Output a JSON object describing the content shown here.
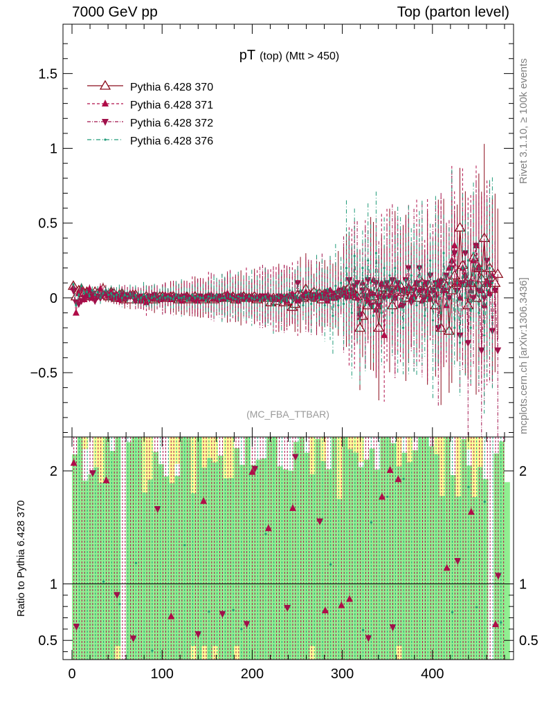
{
  "header": {
    "left": "7000 GeV pp",
    "right": "Top (parton level)"
  },
  "side_labels": {
    "rivet": "Rivet 3.1.10, ≥ 100k events",
    "mcplots": "mcplots.cern.ch [arXiv:1306.3436]"
  },
  "colors": {
    "pythia_370": "#8b0a1a",
    "pythia_371": "#b00c48",
    "pythia_372": "#a0104a",
    "pythia_376": "#1f9a78",
    "band_green": "#90ee90",
    "band_yellow": "#ffff99"
  },
  "chart_data": [
    {
      "type": "scatter",
      "title": "pT (top) (Mtt > 450)",
      "title_parts": {
        "main": "pT",
        "sub": "(top) (Mtt > 450)"
      },
      "analysis_label": "(MC_FBA_TTBAR)",
      "xlim": [
        -10,
        490
      ],
      "ylim": [
        -0.93,
        1.83
      ],
      "yticks": [
        -0.5,
        0,
        0.5,
        1,
        1.5
      ],
      "ytick_labels": [
        "−0.5",
        "0",
        "0.5",
        "1",
        "1.5"
      ],
      "legend": [
        "Pythia 6.428 370",
        "Pythia 6.428 371",
        "Pythia 6.428 372",
        "Pythia 6.428 376"
      ],
      "legend_placement": "top-left",
      "x": [
        1.5,
        4.5,
        7.5,
        10.5,
        13.5,
        16.5,
        19.5,
        22.5,
        25.5,
        28.5,
        31.5,
        34.5,
        37.5,
        40.5,
        43.5,
        46.5,
        49.5,
        52.5,
        55.5,
        58.5,
        61.5,
        64.5,
        67.5,
        70.5,
        73.5,
        76.5,
        79.5,
        82.5,
        85.5,
        88.5,
        91.5,
        94.5,
        97.5,
        100.5,
        103.5,
        106.5,
        109.5,
        112.5,
        115.5,
        118.5,
        121.5,
        124.5,
        127.5,
        130.5,
        133.5,
        136.5,
        139.5,
        142.5,
        145.5,
        148.5,
        151.5,
        154.5,
        157.5,
        160.5,
        163.5,
        166.5,
        169.5,
        172.5,
        175.5,
        178.5,
        181.5,
        184.5,
        187.5,
        190.5,
        193.5,
        196.5,
        199.5,
        202.5,
        205.5,
        208.5,
        211.5,
        214.5,
        217.5,
        220.5,
        223.5,
        226.5,
        229.5,
        232.5,
        235.5,
        238.5,
        241.5,
        244.5,
        247.5,
        250.5,
        253.5,
        256.5,
        259.5,
        262.5,
        265.5,
        268.5,
        271.5,
        274.5,
        277.5,
        280.5,
        283.5,
        286.5,
        289.5,
        292.5,
        295.5,
        298.5,
        301.5,
        304.5,
        307.5,
        310.5,
        313.5,
        316.5,
        319.5,
        322.5,
        325.5,
        328.5,
        331.5,
        334.5,
        337.5,
        340.5,
        343.5,
        346.5,
        349.5,
        352.5,
        355.5,
        358.5,
        361.5,
        364.5,
        367.5,
        370.5,
        373.5,
        376.5,
        379.5,
        382.5,
        385.5,
        388.5,
        391.5,
        394.5,
        397.5,
        400.5,
        403.5,
        406.5,
        409.5,
        412.5,
        415.5,
        418.5,
        421.5,
        424.5,
        427.5,
        430.5,
        433.5,
        436.5,
        439.5,
        442.5,
        445.5,
        448.5,
        451.5,
        454.5,
        457.5,
        460.5,
        463.5,
        466.5,
        469.5,
        472.5,
        475.5,
        478.5
      ],
      "series": [
        {
          "name": "Pythia 6.428 370",
          "marker": "open-triangle-up",
          "values": [
            0.08,
            0.01,
            0.05,
            0.06,
            0.03,
            0.04,
            0.01,
            0.02,
            0.04,
            0.03,
            0.02,
            0.06,
            0.02,
            0.01,
            0.04,
            0.03,
            0.0,
            0.02,
            0.03,
            -0.01,
            0.0,
            -0.01,
            0.02,
            0.02,
            0.0,
            -0.01,
            0.0,
            0.01,
            0.0,
            -0.01,
            -0.01,
            0.0,
            0.01,
            0.01,
            0.0,
            0.0,
            0.01,
            0.01,
            0.0,
            -0.01,
            0.0,
            0.0,
            0.01,
            -0.01,
            0.0,
            0.01,
            0.0,
            0.0,
            -0.01,
            0.0,
            0.0,
            0.0,
            -0.01,
            0.0,
            0.0,
            0.0,
            0.01,
            0.0,
            0.0,
            0.01,
            -0.01,
            0.0,
            0.0,
            0.01,
            0.0,
            0.0,
            0.0,
            0.01,
            -0.01,
            0.0,
            0.0,
            0.0,
            0.0,
            -0.03,
            0.0,
            -0.02,
            0.0,
            0.0,
            -0.03,
            0.0,
            -0.02,
            -0.06,
            -0.04,
            0.02,
            0.02,
            0.0,
            0.06,
            0.01,
            0.02,
            0.04,
            0.0,
            0.03,
            -0.01,
            0.03,
            0.02,
            0.04,
            0.01,
            0.02,
            0.03,
            0.04,
            0.05,
            0.05,
            0.07,
            0.06,
            0.02,
            0.01,
            -0.2,
            -0.12,
            0.05,
            -0.05,
            0.03,
            0.01,
            -0.05,
            -0.2,
            0.07,
            0.02,
            0.03,
            0.05,
            -0.05,
            0.1,
            0.05,
            0.08,
            0.04,
            0.0,
            0.05,
            0.02,
            0.06,
            0.03,
            0.0,
            0.1,
            0.03,
            0.0,
            0.05,
            0.03,
            -0.05,
            0.1,
            -0.2,
            0.1,
            0.08,
            -0.22,
            0.05,
            0.15,
            0.1,
            0.47,
            0.22,
            0.1,
            -0.05,
            0.1,
            0.27,
            0.0,
            0.2,
            0.13,
            0.4,
            0.1,
            0.2,
            0.06,
            0.1,
            0.16
          ]
        },
        {
          "name": "Pythia 6.428 371",
          "marker": "filled-triangle-up",
          "values": [
            0.07,
            -0.1,
            0.03,
            0.06,
            -0.01,
            0.04,
            0.06,
            0.0,
            0.02,
            0.01,
            0.06,
            0.03,
            0.04,
            0.01,
            0.04,
            0.0,
            0.02,
            -0.01,
            0.03,
            0.0,
            0.02,
            0.03,
            0.01,
            0.01,
            0.0,
            -0.02,
            0.01,
            -0.03,
            0.01,
            0.0,
            0.02,
            0.0,
            -0.01,
            0.0,
            0.02,
            0.0,
            -0.01,
            0.0,
            0.01,
            0.01,
            -0.02,
            0.01,
            0.01,
            0.0,
            0.01,
            0.0,
            -0.02,
            0.01,
            0.0,
            0.0,
            0.02,
            0.02,
            0.0,
            0.01,
            -0.01,
            0.0,
            0.0,
            0.03,
            0.01,
            0.0,
            0.01,
            -0.02,
            0.02,
            0.0,
            0.01,
            0.0,
            0.0,
            0.0,
            0.01,
            0.0,
            0.0,
            0.01,
            0.02,
            0.0,
            -0.01,
            -0.01,
            0.0,
            0.01,
            0.01,
            -0.02,
            0.02,
            0.03,
            0.01,
            -0.02,
            0.0,
            0.02,
            0.04,
            0.02,
            0.01,
            0.0,
            0.03,
            0.01,
            0.0,
            0.03,
            -0.02,
            0.05,
            0.0,
            0.0,
            0.05,
            0.02,
            0.03,
            0.04,
            0.01,
            0.03,
            0.02,
            0.0,
            -0.1,
            0.1,
            0.02,
            -0.02,
            0.03,
            0.12,
            -0.08,
            0.02,
            0.1,
            -0.25,
            0.08,
            0.02,
            0.05,
            0.0,
            0.08,
            -0.05,
            0.05,
            0.05,
            0.08,
            0.0,
            0.02,
            0.1,
            0.05,
            -0.02,
            0.1,
            0.05,
            0.0,
            0.05,
            0.02,
            0.08,
            0.12,
            0.05,
            -0.05,
            0.2,
            0.25,
            0.35,
            0.1,
            0.0,
            0.2,
            0.15,
            0.1,
            0.05,
            0.25,
            0.35,
            0.2,
            0.05,
            -0.05,
            0.1,
            0.03,
            0.15
          ]
        },
        {
          "name": "Pythia 6.428 372",
          "marker": "filled-triangle-down",
          "values": [
            0.05,
            -0.03,
            -0.04,
            -0.02,
            0.0,
            0.01,
            0.0,
            0.03,
            -0.02,
            0.01,
            0.0,
            0.02,
            0.03,
            0.01,
            0.0,
            0.02,
            0.01,
            0.0,
            0.01,
            0.02,
            0.0,
            0.01,
            0.02,
            -0.02,
            0.0,
            0.01,
            0.0,
            0.0,
            0.01,
            0.0,
            0.02,
            0.0,
            0.0,
            -0.01,
            0.0,
            0.01,
            0.0,
            0.0,
            0.01,
            0.0,
            0.0,
            0.01,
            0.0,
            0.0,
            -0.01,
            0.0,
            0.0,
            0.01,
            0.0,
            0.0,
            0.0,
            0.01,
            0.0,
            0.0,
            0.01,
            0.0,
            0.0,
            0.0,
            0.01,
            0.0,
            0.0,
            0.0,
            0.01,
            0.0,
            0.0,
            -0.01,
            0.0,
            0.0,
            0.0,
            0.0,
            0.01,
            0.0,
            0.0,
            0.0,
            0.0,
            0.0,
            0.01,
            0.0,
            -0.01,
            0.0,
            0.01,
            0.0,
            0.0,
            0.1,
            -0.01,
            0.0,
            0.02,
            0.01,
            0.0,
            0.02,
            0.0,
            0.01,
            0.02,
            0.0,
            0.04,
            0.0,
            0.01,
            0.03,
            0.0,
            0.05,
            0.02,
            0.0,
            0.12,
            0.05,
            0.08,
            0.1,
            -0.12,
            0.05,
            0.0,
            0.12,
            -0.05,
            0.02,
            0.1,
            -0.05,
            0.08,
            0.0,
            0.1,
            0.05,
            0.12,
            0.0,
            0.1,
            0.05,
            -0.05,
            0.12,
            0.2,
            -0.03,
            0.05,
            0.1,
            0.2,
            0.05,
            0.0,
            0.1,
            0.15,
            0.05,
            0.1,
            -0.2,
            0.1,
            0.05,
            0.15,
            0.0,
            0.2,
            0.3,
            0.05,
            -0.25,
            0.1,
            0.3,
            -0.3,
            0.1,
            0.0,
            0.35,
            0.05,
            -0.35,
            0.0,
            0.25,
            0.1,
            -0.22,
            0.05,
            -0.35
          ]
        },
        {
          "name": "Pythia 6.428 376",
          "marker": "dot",
          "values": [
            0.09,
            -0.05,
            0.02,
            0.08,
            0.03,
            0.04,
            0.01,
            0.05,
            0.02,
            0.04,
            0.0,
            0.03,
            0.05,
            0.02,
            0.03,
            0.01,
            0.02,
            0.04,
            0.0,
            0.02,
            0.01,
            0.03,
            0.0,
            0.02,
            -0.01,
            0.0,
            0.02,
            0.01,
            -0.02,
            0.0,
            0.01,
            -0.01,
            0.0,
            0.02,
            0.0,
            0.01,
            0.0,
            -0.01,
            0.02,
            0.0,
            0.0,
            0.01,
            -0.02,
            0.0,
            0.02,
            0.0,
            0.01,
            0.0,
            0.0,
            -0.02,
            0.01,
            0.0,
            0.0,
            0.02,
            -0.01,
            0.0,
            0.0,
            -0.02,
            0.01,
            0.0,
            -0.01,
            0.01,
            0.0,
            0.0,
            -0.02,
            0.01,
            0.0,
            -0.01,
            0.0,
            -0.02,
            0.0,
            0.01,
            -0.02,
            0.0,
            -0.05,
            0.01,
            0.0,
            -0.03,
            0.02,
            -0.02,
            0.05,
            -0.03,
            0.02,
            0.0,
            0.05,
            -0.05,
            0.02,
            0.03,
            -0.04,
            0.02,
            0.05,
            0.0,
            0.03,
            -0.05,
            0.06,
            0.0,
            -0.12,
            0.08,
            -0.05,
            0.1,
            -0.04,
            0.2,
            0.05,
            -0.1,
            0.28,
            0.02,
            -0.15,
            0.2,
            -0.05,
            0.25,
            0.1,
            -0.12,
            0.3,
            0.05,
            -0.1,
            0.2,
            0.0,
            0.15,
            -0.1,
            0.2,
            0.05,
            0.1,
            -0.2,
            0.12,
            0.05,
            0.15,
            0.0,
            -0.05,
            0.2,
            0.1,
            -0.12,
            0.0,
            0.25,
            -0.15,
            0.1,
            0.05,
            -0.1,
            0.3,
            -0.05,
            0.1,
            0.2,
            -0.2,
            0.1,
            -0.3,
            0.2,
            0.0,
            0.25,
            -0.2,
            0.3,
            0.1,
            -0.1,
            0.2,
            -0.25,
            0.05,
            0.2,
            0.1
          ]
        }
      ]
    },
    {
      "type": "area",
      "ylabel": "Ratio to Pythia 6.428 370",
      "xlim": [
        -10,
        490
      ],
      "ylim": [
        0.33,
        2.3
      ],
      "yticks": [
        0.5,
        1,
        2
      ],
      "ytick_labels": [
        "0.5",
        "1",
        "2"
      ],
      "xticks": [
        0,
        100,
        200,
        300,
        400
      ],
      "xtick_labels": [
        "0",
        "100",
        "200",
        "300",
        "400"
      ],
      "reference_line": 1,
      "bands": [
        "band_green",
        "band_yellow"
      ]
    }
  ]
}
